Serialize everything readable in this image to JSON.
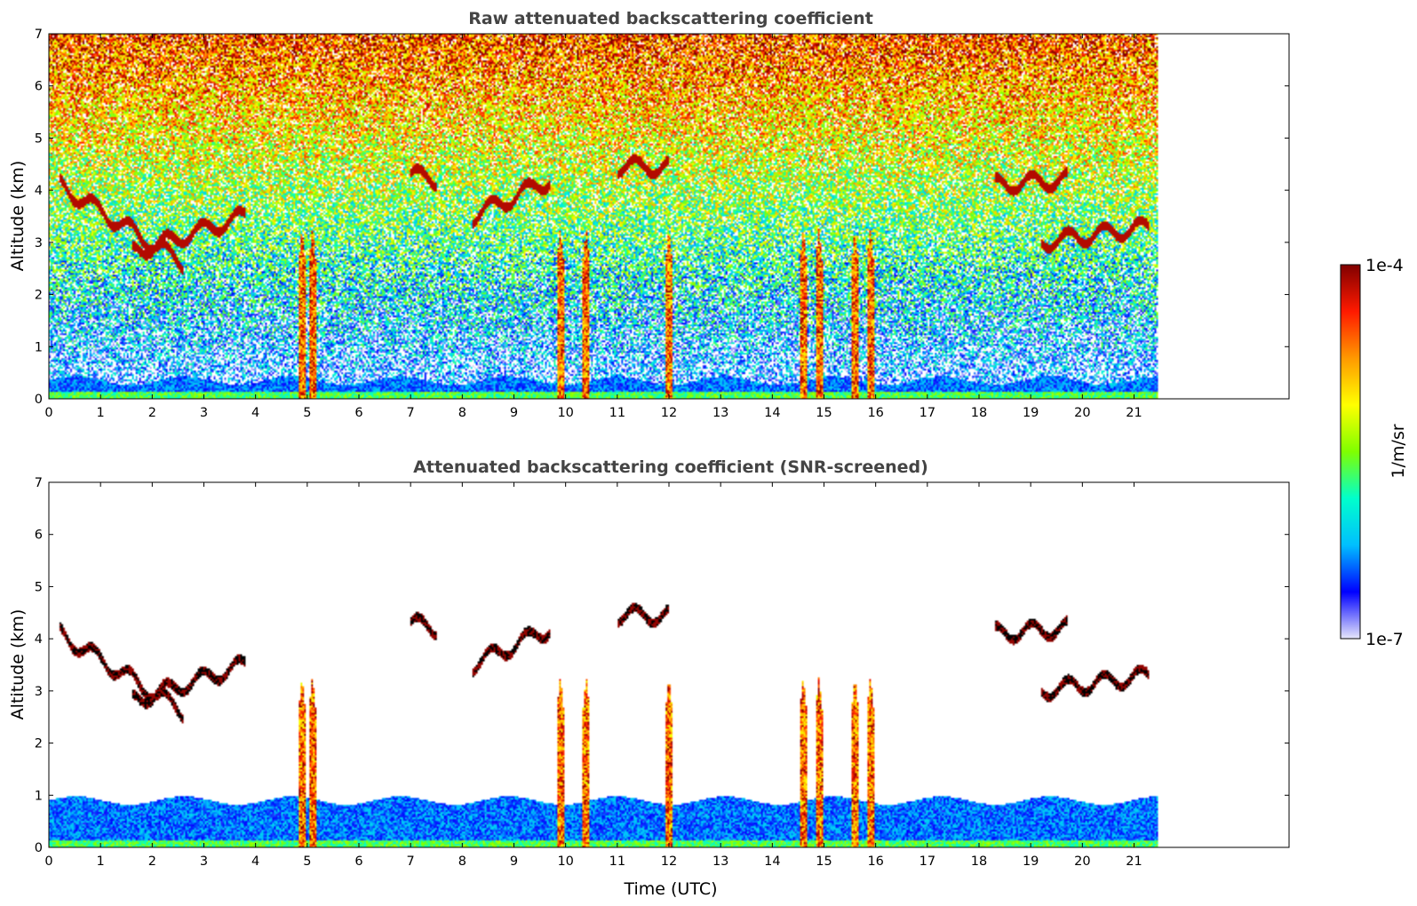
{
  "chart_data": [
    {
      "type": "heatmap",
      "title": "Raw attenuated backscattering coefficient",
      "xlabel": "",
      "ylabel": "Altitude (km)",
      "xlim": [
        0,
        24
      ],
      "ylim": [
        0,
        7
      ],
      "x_ticks": [
        0,
        1,
        2,
        3,
        4,
        5,
        6,
        7,
        8,
        9,
        10,
        11,
        12,
        13,
        14,
        15,
        16,
        17,
        18,
        19,
        20,
        21
      ],
      "y_ticks": [
        0,
        1,
        2,
        3,
        4,
        5,
        6,
        7
      ],
      "data_extent_time": [
        0,
        21.45
      ],
      "grid": false,
      "colormap": "jet",
      "color_scale": "log",
      "clim": [
        1e-07,
        0.0001
      ],
      "features": {
        "boundary_layer_top_km": 0.35,
        "cirrus_layers": [
          {
            "t": [
              0.2,
              2.6
            ],
            "alt": [
              4.1,
              2.6
            ]
          },
          {
            "t": [
              1.6,
              3.8
            ],
            "alt": [
              2.8,
              3.5
            ]
          },
          {
            "t": [
              7.0,
              7.5
            ],
            "alt": [
              4.3,
              4.2
            ]
          },
          {
            "t": [
              8.2,
              9.7
            ],
            "alt": [
              3.5,
              4.2
            ]
          },
          {
            "t": [
              11.0,
              12.0
            ],
            "alt": [
              4.45,
              4.45
            ]
          },
          {
            "t": [
              18.3,
              19.7
            ],
            "alt": [
              4.1,
              4.2
            ]
          },
          {
            "t": [
              19.2,
              21.3
            ],
            "alt": [
              3.0,
              3.3
            ]
          }
        ],
        "rain_shafts_utc": [
          4.9,
          5.1,
          9.9,
          10.4,
          12.0,
          14.6,
          14.9,
          15.6,
          15.9
        ]
      }
    },
    {
      "type": "heatmap",
      "title": "Attenuated backscattering coefficient (SNR-screened)",
      "xlabel": "Time (UTC)",
      "ylabel": "Altitude (km)",
      "xlim": [
        0,
        24
      ],
      "ylim": [
        0,
        7
      ],
      "x_ticks": [
        0,
        1,
        2,
        3,
        4,
        5,
        6,
        7,
        8,
        9,
        10,
        11,
        12,
        13,
        14,
        15,
        16,
        17,
        18,
        19,
        20,
        21
      ],
      "y_ticks": [
        0,
        1,
        2,
        3,
        4,
        5,
        6,
        7
      ],
      "data_extent_time": [
        0,
        21.45
      ],
      "grid": false,
      "colormap": "jet",
      "color_scale": "log",
      "clim": [
        1e-07,
        0.0001
      ],
      "features": {
        "boundary_layer_top_km": 0.9,
        "screened_above_km": 1.2
      }
    }
  ],
  "colorbar": {
    "label": "1/m/sr",
    "max_label": "1e-4",
    "min_label": "1e-7",
    "colors": [
      "#e6e6fa",
      "#0000ff",
      "#00bfff",
      "#00ffcc",
      "#7fff00",
      "#ffff00",
      "#ff9900",
      "#ff1a00",
      "#800000"
    ]
  }
}
